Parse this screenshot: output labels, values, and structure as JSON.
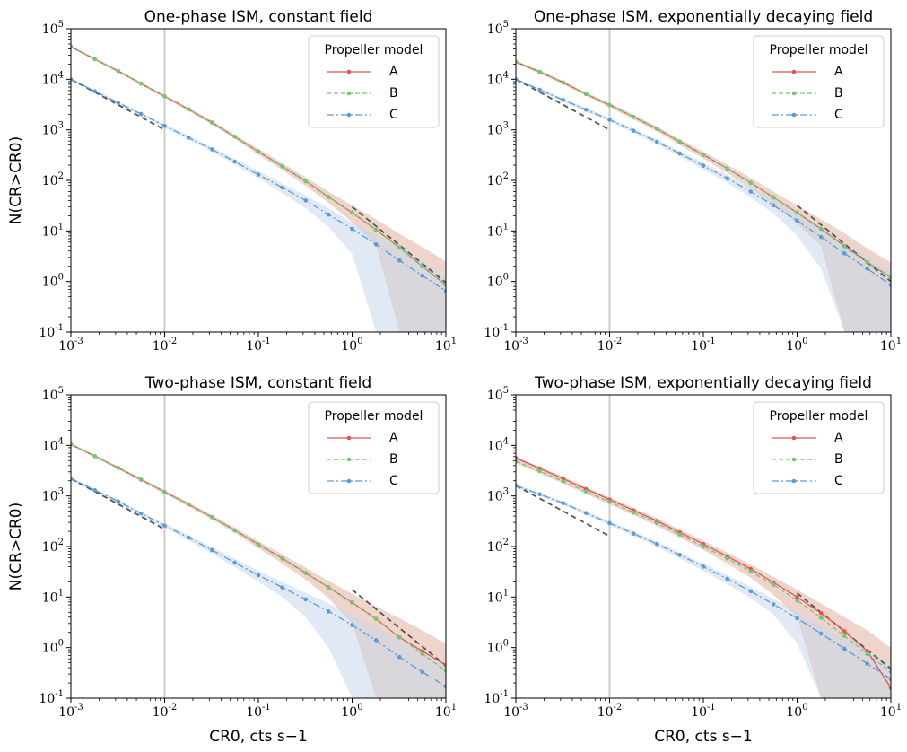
{
  "figure": {
    "ylabel": "N(CR>CR0)",
    "xlabel": "CR0, cts s−1"
  },
  "legend": {
    "title": "Propeller model",
    "placement": "top-right",
    "items": [
      "A",
      "B",
      "C"
    ]
  },
  "colors": {
    "A": "#e05555",
    "B": "#72c872",
    "C": "#5a9bd4",
    "A_fill": "#e0b0a0",
    "C_fill": "#c9d9eb",
    "ref_line": "#555555",
    "vline": "#cccccc"
  },
  "x_ticks": [
    "10^-3",
    "10^-2",
    "10^-1",
    "10^0",
    "10^1"
  ],
  "y_ticks": [
    "10^-1",
    "10^0",
    "10^1",
    "10^2",
    "10^3",
    "10^4",
    "10^5"
  ],
  "chart_data": [
    {
      "type": "line",
      "title": "One-phase ISM, constant field",
      "xscale": "log",
      "yscale": "log",
      "xlim": [
        0.001,
        10
      ],
      "ylim": [
        0.1,
        100000
      ],
      "vline_x": 0.01,
      "show_ylabel": true,
      "show_xlabel": false,
      "x": [
        0.001,
        0.0018,
        0.0032,
        0.0056,
        0.01,
        0.018,
        0.032,
        0.056,
        0.1,
        0.18,
        0.32,
        0.56,
        1.0,
        1.8,
        3.2,
        5.6,
        10
      ],
      "series": [
        {
          "name": "A",
          "values": [
            44000,
            25000,
            14500,
            8200,
            4600,
            2550,
            1390,
            730,
            370,
            190,
            96,
            47,
            23,
            10.5,
            4.7,
            2.0,
            0.85
          ]
        },
        {
          "name": "B",
          "values": [
            44000,
            25000,
            14500,
            8200,
            4600,
            2550,
            1390,
            730,
            370,
            190,
            96,
            47,
            23,
            10.5,
            4.7,
            2.0,
            0.85
          ]
        },
        {
          "name": "C",
          "values": [
            10000,
            5800,
            3450,
            2050,
            1200,
            700,
            410,
            235,
            130,
            72,
            40,
            21,
            11,
            5.4,
            2.6,
            1.3,
            0.65
          ]
        }
      ],
      "bands": [
        {
          "name": "A",
          "upper": [
            46000,
            26500,
            15300,
            8700,
            4900,
            2750,
            1510,
            800,
            420,
            220,
            115,
            60,
            32,
            17,
            8.8,
            4.8,
            2.5
          ],
          "lower": [
            42000,
            23500,
            13700,
            7700,
            4300,
            2350,
            1270,
            660,
            320,
            160,
            78,
            36,
            15,
            5.0,
            0.1,
            0.1,
            0.1
          ]
        },
        {
          "name": "C",
          "upper": [
            10500,
            6100,
            3650,
            2200,
            1300,
            770,
            450,
            265,
            155,
            87,
            50,
            28,
            15,
            8.5,
            4.8,
            2.6,
            1.2
          ],
          "lower": [
            9500,
            5500,
            3250,
            1900,
            1100,
            630,
            370,
            205,
            110,
            56,
            28,
            12,
            3.5,
            0.1,
            0.1,
            0.1,
            0.1
          ]
        }
      ],
      "ref_lines": [
        {
          "x": [
            0.001,
            0.01
          ],
          "y": [
            10000,
            1000
          ]
        },
        {
          "x": [
            1.0,
            10
          ],
          "y": [
            30,
            0.95
          ]
        }
      ]
    },
    {
      "type": "line",
      "title": "One-phase ISM, exponentially decaying field",
      "xscale": "log",
      "yscale": "log",
      "xlim": [
        0.001,
        10
      ],
      "ylim": [
        0.1,
        100000
      ],
      "vline_x": 0.01,
      "show_ylabel": false,
      "show_xlabel": false,
      "x": [
        0.001,
        0.0018,
        0.0032,
        0.0056,
        0.01,
        0.018,
        0.032,
        0.056,
        0.1,
        0.18,
        0.32,
        0.56,
        1.0,
        1.8,
        3.2,
        5.6,
        10
      ],
      "series": [
        {
          "name": "A",
          "values": [
            22000,
            14000,
            8600,
            5100,
            3100,
            1800,
            1050,
            580,
            320,
            172,
            90,
            46,
            23,
            11,
            5.0,
            2.4,
            1.2
          ]
        },
        {
          "name": "B",
          "values": [
            22000,
            14000,
            8600,
            5100,
            3100,
            1800,
            1050,
            580,
            320,
            172,
            90,
            46,
            23,
            11,
            5.0,
            2.4,
            1.2
          ]
        },
        {
          "name": "C",
          "values": [
            10000,
            6200,
            3900,
            2500,
            1580,
            960,
            580,
            340,
            195,
            110,
            60,
            32,
            16,
            7.6,
            3.6,
            1.8,
            0.85
          ]
        }
      ],
      "bands": [
        {
          "name": "A",
          "upper": [
            23500,
            15000,
            9300,
            5500,
            3400,
            2000,
            1170,
            660,
            370,
            205,
            112,
            60,
            32,
            17,
            9.0,
            4.5,
            2.4
          ],
          "lower": [
            20500,
            13000,
            7900,
            4700,
            2800,
            1600,
            930,
            500,
            270,
            140,
            70,
            33,
            14,
            5.0,
            0.1,
            0.1,
            0.1
          ]
        },
        {
          "name": "C",
          "upper": [
            10600,
            6600,
            4200,
            2700,
            1720,
            1050,
            650,
            385,
            225,
            130,
            74,
            42,
            22,
            11.5,
            6.0,
            3.2,
            1.6
          ],
          "lower": [
            9400,
            5800,
            3600,
            2300,
            1440,
            870,
            510,
            295,
            165,
            90,
            46,
            22,
            8.0,
            1.8,
            0.1,
            0.1,
            0.1
          ]
        }
      ],
      "ref_lines": [
        {
          "x": [
            0.001,
            0.01
          ],
          "y": [
            10000,
            1000
          ]
        },
        {
          "x": [
            1.0,
            10
          ],
          "y": [
            32,
            1.0
          ]
        }
      ]
    },
    {
      "type": "line",
      "title": "Two-phase ISM, constant field",
      "xscale": "log",
      "yscale": "log",
      "xlim": [
        0.001,
        10
      ],
      "ylim": [
        0.1,
        100000
      ],
      "vline_x": 0.01,
      "show_ylabel": true,
      "show_xlabel": true,
      "x": [
        0.001,
        0.0018,
        0.0032,
        0.0056,
        0.01,
        0.018,
        0.032,
        0.056,
        0.1,
        0.18,
        0.32,
        0.56,
        1.0,
        1.8,
        3.2,
        5.6,
        10
      ],
      "series": [
        {
          "name": "A",
          "values": [
            10500,
            6100,
            3600,
            2100,
            1200,
            680,
            380,
            210,
            110,
            58,
            30,
            15.5,
            7.8,
            3.7,
            1.6,
            0.85,
            0.45
          ]
        },
        {
          "name": "B",
          "values": [
            10500,
            6100,
            3600,
            2100,
            1200,
            680,
            380,
            210,
            110,
            58,
            30,
            15.5,
            7.8,
            3.7,
            1.6,
            0.75,
            0.35
          ]
        },
        {
          "name": "C",
          "values": [
            2200,
            1300,
            780,
            450,
            260,
            150,
            85,
            48,
            27,
            15.5,
            9.0,
            5.2,
            2.8,
            1.4,
            0.65,
            0.33,
            0.17
          ]
        }
      ],
      "bands": [
        {
          "name": "A",
          "upper": [
            11000,
            6500,
            3850,
            2250,
            1300,
            745,
            420,
            235,
            128,
            70,
            38,
            21,
            11.5,
            6.5,
            3.8,
            2.2,
            1.2
          ],
          "lower": [
            10000,
            5750,
            3350,
            1950,
            1100,
            615,
            340,
            185,
            92,
            46,
            22,
            9.5,
            3.0,
            0.1,
            0.1,
            0.1,
            0.1
          ]
        },
        {
          "name": "C",
          "upper": [
            2350,
            1400,
            840,
            490,
            285,
            168,
            98,
            57,
            33,
            20,
            12,
            7.5,
            4.5,
            2.5,
            1.4,
            0.8,
            0.45
          ],
          "lower": [
            2050,
            1200,
            720,
            410,
            235,
            132,
            72,
            39,
            20,
            10,
            4.0,
            1.0,
            0.1,
            0.1,
            0.1,
            0.1,
            0.1
          ]
        }
      ],
      "ref_lines": [
        {
          "x": [
            0.001,
            0.01
          ],
          "y": [
            2200,
            220
          ]
        },
        {
          "x": [
            1.0,
            10
          ],
          "y": [
            14,
            0.44
          ]
        }
      ]
    },
    {
      "type": "line",
      "title": "Two-phase ISM, exponentially decaying field",
      "xscale": "log",
      "yscale": "log",
      "xlim": [
        0.001,
        10
      ],
      "ylim": [
        0.1,
        100000
      ],
      "vline_x": 0.01,
      "show_ylabel": false,
      "show_xlabel": true,
      "x": [
        0.001,
        0.0018,
        0.0032,
        0.0056,
        0.01,
        0.018,
        0.032,
        0.056,
        0.1,
        0.18,
        0.32,
        0.56,
        1.0,
        1.8,
        3.2,
        5.6,
        10
      ],
      "series": [
        {
          "name": "A",
          "values": [
            5600,
            3500,
            2200,
            1370,
            850,
            520,
            320,
            190,
            112,
            64,
            36,
            19.5,
            10,
            4.8,
            2.1,
            0.85,
            0.16
          ]
        },
        {
          "name": "B",
          "values": [
            4800,
            3100,
            1950,
            1220,
            760,
            470,
            290,
            173,
            100,
            58,
            32,
            17.5,
            8.6,
            3.9,
            1.7,
            0.75,
            0.33
          ]
        },
        {
          "name": "C",
          "values": [
            1600,
            1080,
            720,
            460,
            290,
            180,
            112,
            68,
            40,
            23,
            13,
            7.2,
            3.8,
            1.9,
            0.95,
            0.48,
            0.24
          ]
        }
      ],
      "bands": [
        {
          "name": "A",
          "upper": [
            6000,
            3800,
            2400,
            1500,
            940,
            580,
            360,
            218,
            130,
            76,
            44,
            25,
            14,
            7.5,
            4.0,
            2.2,
            1.0
          ],
          "lower": [
            4400,
            2800,
            1750,
            1100,
            680,
            420,
            255,
            150,
            86,
            46,
            24,
            11,
            4.0,
            0.1,
            0.1,
            0.1,
            0.1
          ]
        },
        {
          "name": "C",
          "upper": [
            1720,
            1160,
            780,
            500,
            318,
            200,
            125,
            77,
            46,
            27,
            16,
            9.2,
            5.2,
            2.9,
            1.6,
            0.9,
            0.45
          ],
          "lower": [
            1480,
            1000,
            660,
            420,
            262,
            160,
            98,
            58,
            33,
            18,
            9.5,
            4.5,
            1.2,
            0.1,
            0.1,
            0.1,
            0.1
          ]
        }
      ],
      "ref_lines": [
        {
          "x": [
            0.001,
            0.01
          ],
          "y": [
            1600,
            160
          ]
        },
        {
          "x": [
            1.0,
            10
          ],
          "y": [
            12,
            0.38
          ]
        }
      ]
    }
  ]
}
